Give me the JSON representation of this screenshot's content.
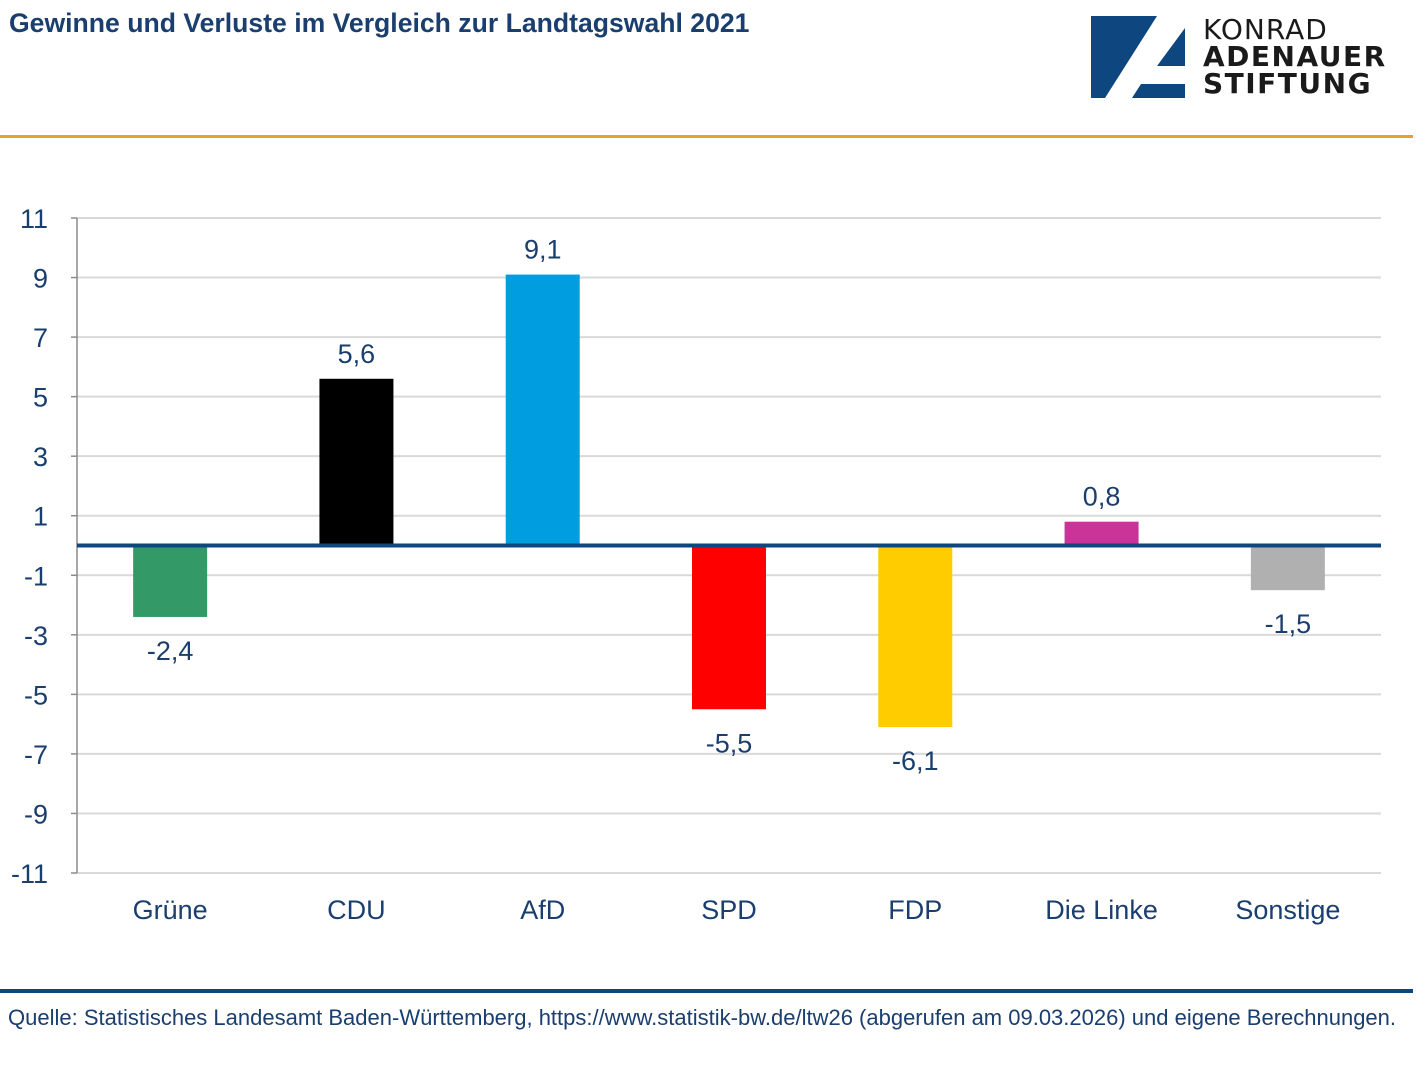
{
  "header": {
    "title": "Gewinne und Verluste im Vergleich zur Landtagswahl 2021",
    "logo": {
      "icon": "kas-logo-icon",
      "line1": "KONRAD",
      "line2": "ADENAUER",
      "line3": "STIFTUNG",
      "brand_color": "#0e467f"
    },
    "accent_rule_color": "#e8a12a"
  },
  "footer": {
    "source": "Quelle: Statistisches Landesamt Baden-Württemberg, https://www.statistik-bw.de/ltw26 (abgerufen am 09.03.2026) und eigene Berechnungen.",
    "rule_color": "#0e467f"
  },
  "chart_data": {
    "type": "bar",
    "title": "Gewinne und Verluste im Vergleich zur Landtagswahl 2021",
    "xlabel": "",
    "ylabel": "",
    "categories": [
      "Grüne",
      "CDU",
      "AfD",
      "SPD",
      "FDP",
      "Die Linke",
      "Sonstige"
    ],
    "values": [
      -2.4,
      5.6,
      9.1,
      -5.5,
      -6.1,
      0.8,
      -1.5
    ],
    "value_labels": [
      "-2,4",
      "5,6",
      "9,1",
      "-5,5",
      "-6,1",
      "0,8",
      "-1,5"
    ],
    "colors": [
      "#339966",
      "#000000",
      "#009ee0",
      "#ff0000",
      "#ffcc00",
      "#cc3399",
      "#b0b0b0"
    ],
    "ylim": [
      -11,
      11
    ],
    "yticks": [
      11,
      9,
      7,
      5,
      3,
      1,
      -1,
      -3,
      -5,
      -7,
      -9,
      -11
    ],
    "ytick_labels": [
      "11",
      "9",
      "7",
      "5",
      "3",
      "1",
      "-1",
      "-3",
      "-5",
      "-7",
      "-9",
      "-11"
    ],
    "grid": true,
    "legend": "none",
    "zero_line_color": "#0e467f",
    "text_color": "#1a3e6e"
  }
}
